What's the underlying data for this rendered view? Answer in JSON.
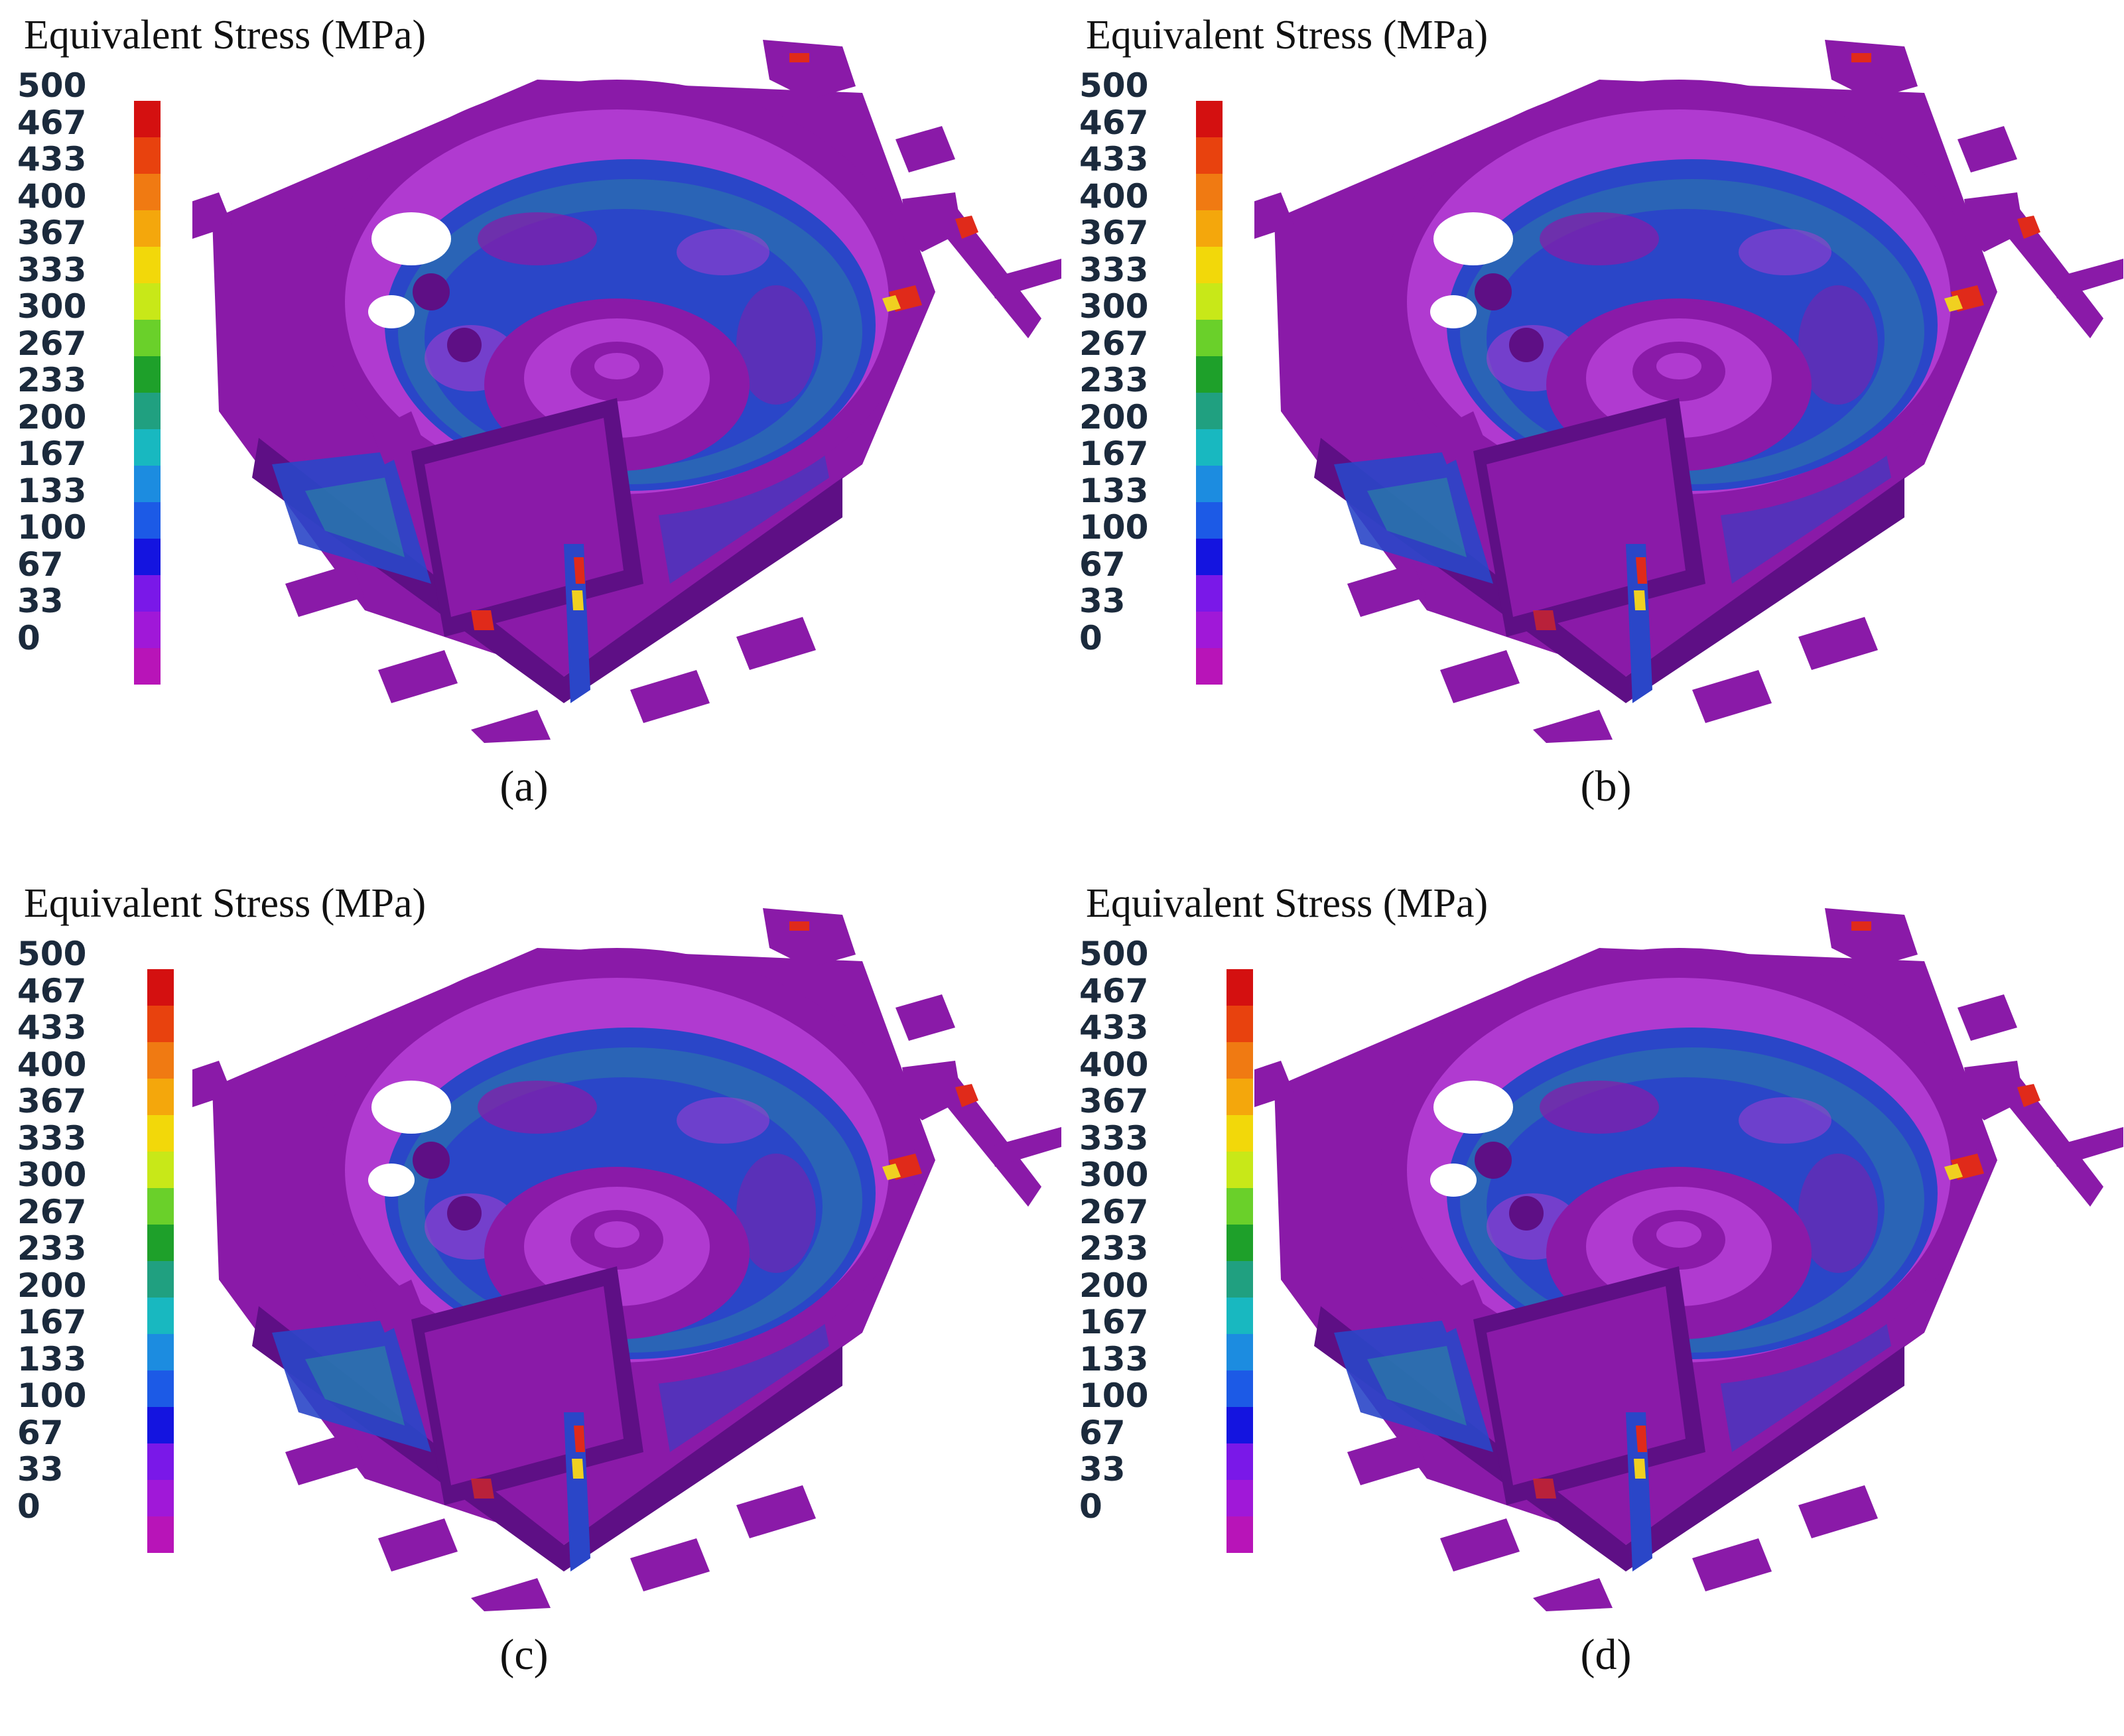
{
  "panels": [
    {
      "id": "a",
      "title": "Equivalent Stress (MPa)",
      "caption": "(a)"
    },
    {
      "id": "b",
      "title": "Equivalent Stress (MPa)",
      "caption": "(b)"
    },
    {
      "id": "c",
      "title": "Equivalent Stress (MPa)",
      "caption": "(c)"
    },
    {
      "id": "d",
      "title": "Equivalent Stress (MPa)",
      "caption": "(d)"
    }
  ],
  "legend_ticks": [
    "500",
    "467",
    "433",
    "400",
    "367",
    "333",
    "300",
    "267",
    "233",
    "200",
    "167",
    "133",
    "100",
    "67",
    "33",
    "0"
  ],
  "colorbar_colors": [
    "#d41010",
    "#e8420e",
    "#f07a12",
    "#f4a70c",
    "#f2d80a",
    "#c8e818",
    "#6ad02a",
    "#1ea02a",
    "#20a080",
    "#18b8c0",
    "#1c8ce0",
    "#1c5ae6",
    "#1414e0",
    "#7a18e8",
    "#a018d8",
    "#b814b8"
  ],
  "model_colors": {
    "base": "#8a1aa8",
    "dark": "#5e0f85",
    "light": "#b03ad0",
    "blue": "#2a46c8",
    "teal": "#2a8aa0",
    "red": "#e02a1a",
    "yellow": "#f0d020"
  }
}
